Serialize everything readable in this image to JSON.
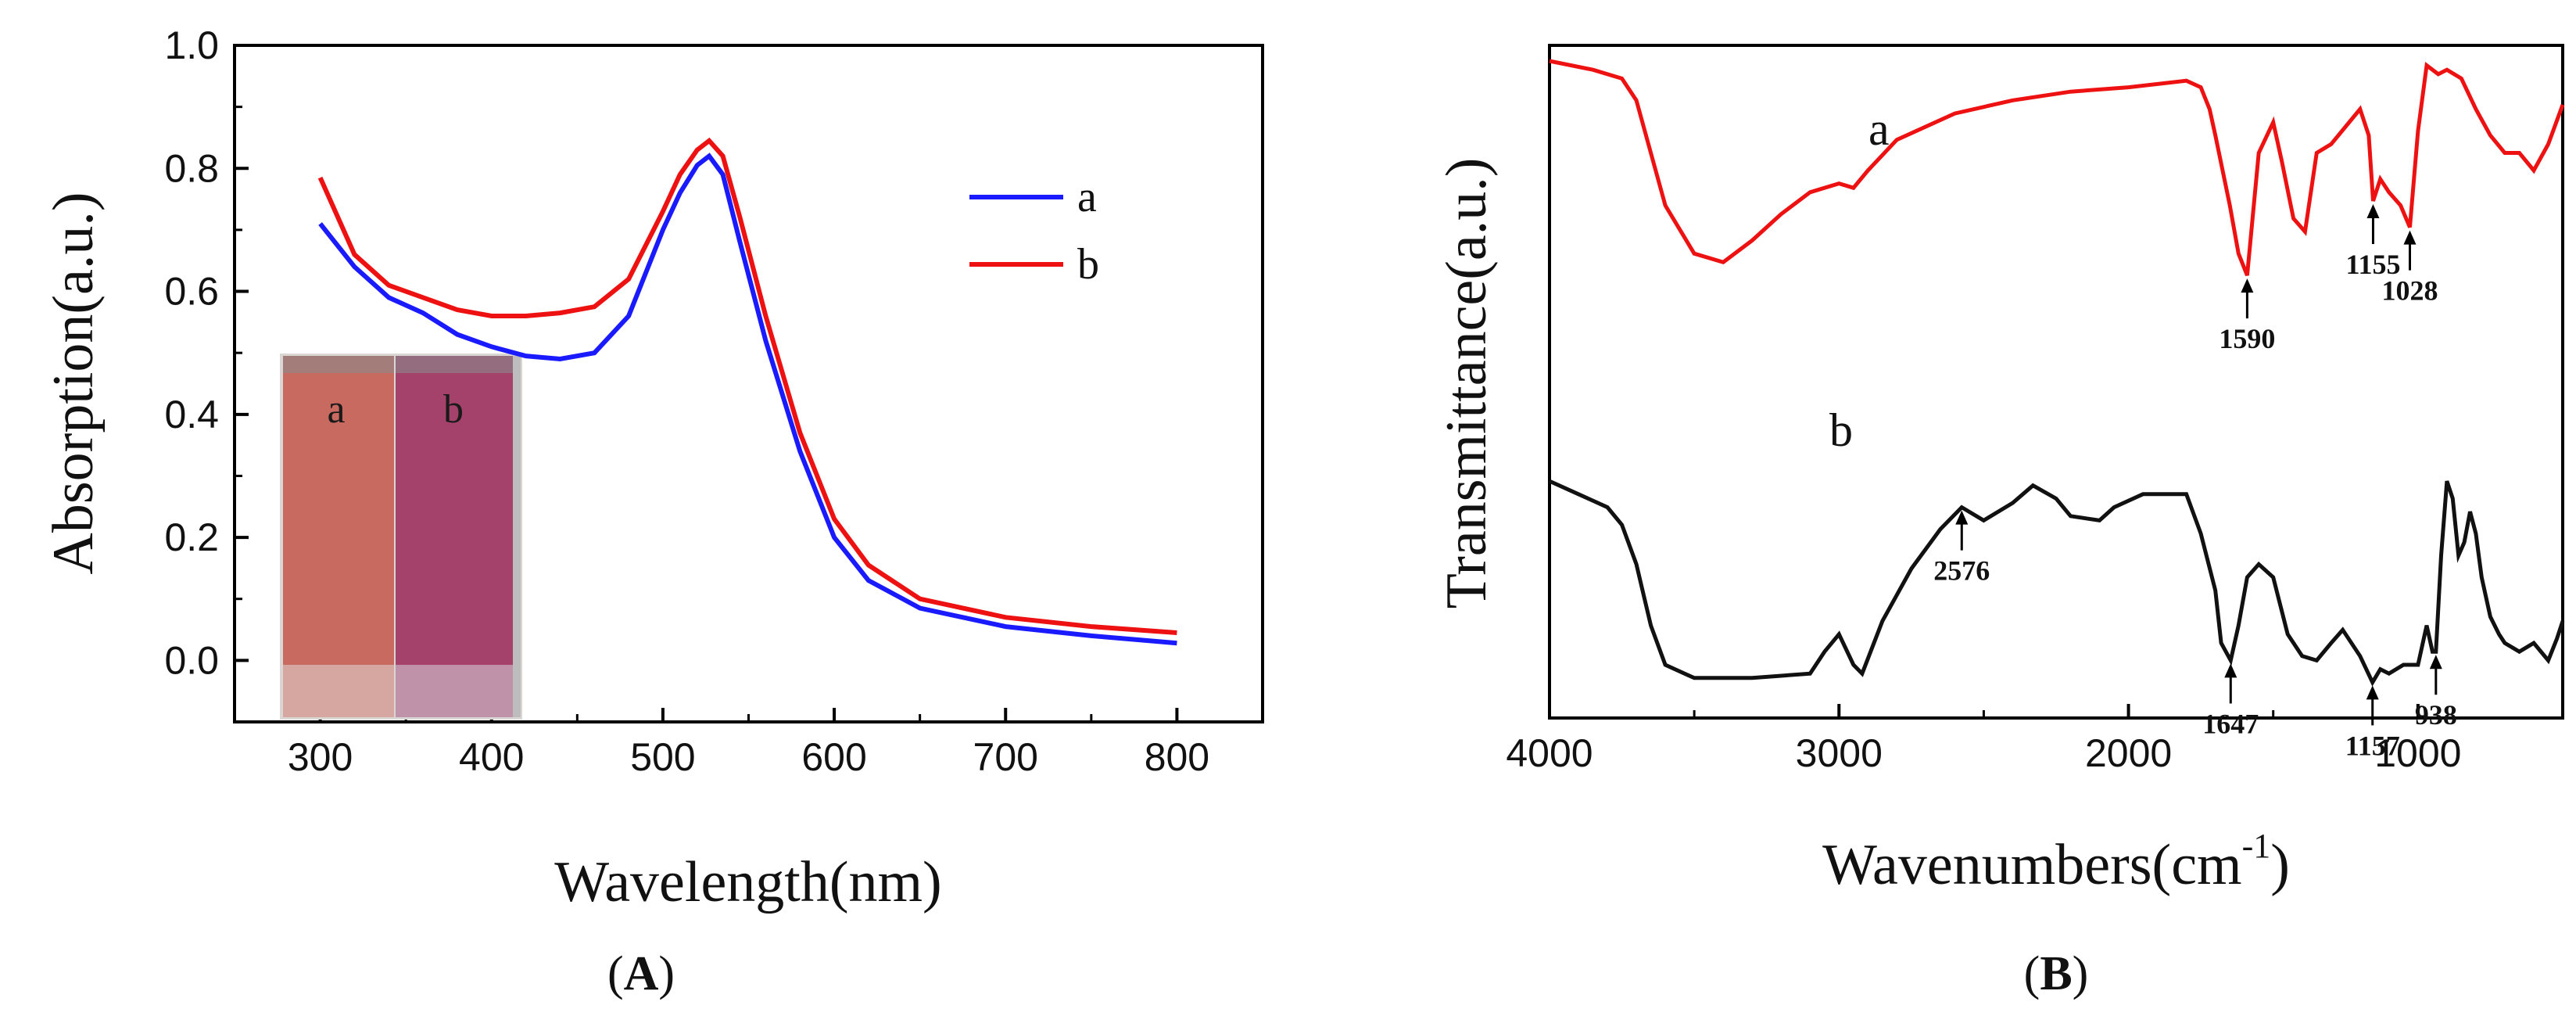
{
  "chart_data": [
    {
      "id": "A",
      "type": "line",
      "panel_label": "A",
      "xlabel": "Wavelength(nm)",
      "ylabel": "Absorption(a.u.)",
      "xlim": [
        250,
        850
      ],
      "ylim": [
        -0.1,
        1.0
      ],
      "xticks": [
        300,
        400,
        500,
        600,
        700,
        800
      ],
      "yticks": [
        0.0,
        0.2,
        0.4,
        0.6,
        0.8,
        1.0
      ],
      "legend_position": "top-right",
      "series": [
        {
          "name": "a",
          "color": "#1a1aff",
          "x": [
            300,
            320,
            340,
            360,
            380,
            400,
            420,
            440,
            460,
            480,
            500,
            510,
            520,
            527,
            535,
            545,
            560,
            580,
            600,
            620,
            650,
            700,
            750,
            800
          ],
          "y": [
            0.71,
            0.64,
            0.59,
            0.565,
            0.53,
            0.51,
            0.495,
            0.49,
            0.5,
            0.56,
            0.7,
            0.76,
            0.805,
            0.82,
            0.79,
            0.68,
            0.52,
            0.34,
            0.2,
            0.13,
            0.085,
            0.055,
            0.04,
            0.028
          ]
        },
        {
          "name": "b",
          "color": "#ee1111",
          "x": [
            300,
            320,
            340,
            360,
            380,
            400,
            420,
            440,
            460,
            480,
            500,
            510,
            520,
            527,
            535,
            545,
            560,
            580,
            600,
            620,
            650,
            700,
            750,
            800
          ],
          "y": [
            0.785,
            0.66,
            0.61,
            0.59,
            0.57,
            0.56,
            0.56,
            0.565,
            0.575,
            0.62,
            0.73,
            0.79,
            0.83,
            0.845,
            0.82,
            0.72,
            0.56,
            0.37,
            0.23,
            0.155,
            0.1,
            0.07,
            0.055,
            0.045
          ]
        }
      ],
      "inset": {
        "description_labels": [
          "a",
          "b"
        ],
        "colors": [
          "#cc6b62",
          "#a5446a"
        ]
      }
    },
    {
      "id": "B",
      "type": "line",
      "panel_label": "B",
      "xlabel": "Wavenumbers(cm",
      "xlabel_superscript": "-1",
      "xlabel_suffix": ")",
      "ylabel": "Transmittance(a.u.)",
      "xlim": [
        4000,
        500
      ],
      "xticks": [
        4000,
        3000,
        2000,
        1000
      ],
      "series": [
        {
          "name": "a",
          "color": "#ee1111",
          "x": [
            4000,
            3850,
            3750,
            3700,
            3650,
            3600,
            3500,
            3400,
            3300,
            3200,
            3100,
            3000,
            2950,
            2900,
            2800,
            2600,
            2400,
            2200,
            2000,
            1800,
            1750,
            1720,
            1700,
            1650,
            1620,
            1590,
            1550,
            1500,
            1470,
            1430,
            1390,
            1350,
            1300,
            1250,
            1200,
            1170,
            1155,
            1130,
            1100,
            1060,
            1028,
            1000,
            970,
            930,
            900,
            850,
            800,
            750,
            700,
            650,
            600,
            550,
            500
          ],
          "y": [
            0.91,
            0.89,
            0.87,
            0.82,
            0.7,
            0.58,
            0.47,
            0.45,
            0.5,
            0.56,
            0.61,
            0.63,
            0.62,
            0.66,
            0.73,
            0.79,
            0.82,
            0.84,
            0.85,
            0.865,
            0.85,
            0.8,
            0.74,
            0.58,
            0.47,
            0.42,
            0.7,
            0.77,
            0.68,
            0.55,
            0.52,
            0.7,
            0.72,
            0.76,
            0.8,
            0.74,
            0.59,
            0.64,
            0.61,
            0.58,
            0.53,
            0.75,
            0.9,
            0.88,
            0.89,
            0.87,
            0.8,
            0.74,
            0.7,
            0.7,
            0.66,
            0.72,
            0.81
          ]
        },
        {
          "name": "b",
          "color": "#111111",
          "x": [
            4000,
            3900,
            3800,
            3750,
            3700,
            3650,
            3600,
            3500,
            3300,
            3100,
            3050,
            3000,
            2950,
            2920,
            2850,
            2750,
            2650,
            2576,
            2500,
            2400,
            2330,
            2250,
            2200,
            2100,
            2050,
            1950,
            1800,
            1750,
            1700,
            1680,
            1647,
            1620,
            1590,
            1550,
            1500,
            1450,
            1400,
            1350,
            1300,
            1260,
            1200,
            1157,
            1130,
            1100,
            1050,
            1000,
            970,
            950,
            938,
            920,
            900,
            880,
            860,
            840,
            820,
            800,
            780,
            750,
            720,
            700,
            650,
            600,
            550,
            520,
            500
          ],
          "y": [
            0.47,
            0.44,
            0.41,
            0.37,
            0.28,
            0.14,
            0.05,
            0.02,
            0.02,
            0.03,
            0.08,
            0.12,
            0.05,
            0.03,
            0.15,
            0.27,
            0.36,
            0.41,
            0.38,
            0.42,
            0.46,
            0.43,
            0.39,
            0.38,
            0.41,
            0.44,
            0.44,
            0.35,
            0.22,
            0.1,
            0.06,
            0.14,
            0.25,
            0.28,
            0.25,
            0.12,
            0.07,
            0.06,
            0.1,
            0.13,
            0.07,
            0.01,
            0.04,
            0.03,
            0.05,
            0.05,
            0.14,
            0.08,
            0.08,
            0.3,
            0.47,
            0.43,
            0.3,
            0.33,
            0.4,
            0.35,
            0.25,
            0.16,
            0.12,
            0.1,
            0.08,
            0.1,
            0.06,
            0.11,
            0.15
          ]
        }
      ],
      "annotations": [
        {
          "text": "2576",
          "series": "b",
          "x": 2576
        },
        {
          "text": "1647",
          "series": "b",
          "x": 1647
        },
        {
          "text": "1157",
          "series": "b",
          "x": 1157
        },
        {
          "text": "938",
          "series": "b",
          "x": 938
        },
        {
          "text": "1590",
          "series": "a",
          "x": 1590
        },
        {
          "text": "1155",
          "series": "a",
          "x": 1155
        },
        {
          "text": "1028",
          "series": "a",
          "x": 1028
        }
      ]
    }
  ]
}
